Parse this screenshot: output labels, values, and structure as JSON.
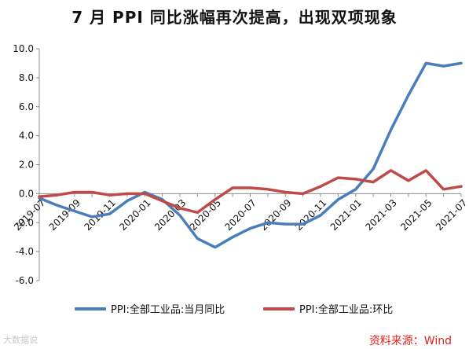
{
  "chart_data": {
    "type": "line",
    "title": "7 月 PPI 同比涨幅再次提高，出现双项现象",
    "xlabel": "",
    "ylabel": "",
    "ylim": [
      -6,
      10
    ],
    "yticks": [
      "-6.0",
      "-4.0",
      "-2.0",
      "0.0",
      "2.0",
      "4.0",
      "6.0",
      "8.0",
      "10.0"
    ],
    "ytick_values": [
      -6,
      -4,
      -2,
      0,
      2,
      4,
      6,
      8,
      10
    ],
    "x": [
      "2019-07",
      "2019-08",
      "2019-09",
      "2019-10",
      "2019-11",
      "2019-12",
      "2020-01",
      "2020-02",
      "2020-03",
      "2020-04",
      "2020-05",
      "2020-06",
      "2020-07",
      "2020-08",
      "2020-09",
      "2020-10",
      "2020-11",
      "2020-12",
      "2021-01",
      "2021-02",
      "2021-03",
      "2021-04",
      "2021-05",
      "2021-06",
      "2021-07"
    ],
    "xtick_labels": [
      "2019-07",
      "2019-09",
      "2019-11",
      "2020-01",
      "2020-03",
      "2020-05",
      "2020-07",
      "2020-09",
      "2020-11",
      "2021-01",
      "2021-03",
      "2021-05",
      "2021-07"
    ],
    "grid": false,
    "legend_position": "bottom",
    "series": [
      {
        "name": "PPI:全部工业品:当月同比",
        "color": "#4a7ebb",
        "values": [
          -0.3,
          -0.8,
          -1.2,
          -1.6,
          -1.4,
          -0.5,
          0.1,
          -0.4,
          -1.5,
          -3.1,
          -3.7,
          -3.0,
          -2.4,
          -2.0,
          -2.1,
          -2.1,
          -1.5,
          -0.4,
          0.3,
          1.7,
          4.4,
          6.8,
          9.0,
          8.8,
          9.0
        ]
      },
      {
        "name": "PPI:全部工业品:环比",
        "color": "#be4b48",
        "values": [
          -0.2,
          -0.1,
          0.1,
          0.1,
          -0.1,
          0.0,
          0.0,
          -0.5,
          -1.0,
          -1.3,
          -0.4,
          0.4,
          0.4,
          0.3,
          0.1,
          0.0,
          0.5,
          1.1,
          1.0,
          0.8,
          1.6,
          0.9,
          1.6,
          0.3,
          0.5
        ]
      }
    ]
  },
  "source_text": "资料来源：Wind",
  "watermark_text": "大数据说"
}
